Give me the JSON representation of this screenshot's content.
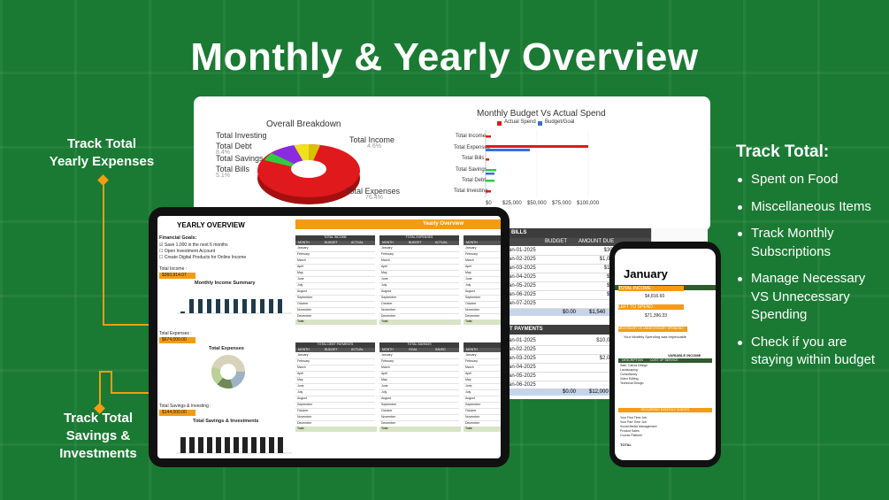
{
  "title": "Monthly & Yearly Overview",
  "labels": {
    "yearly_expenses": [
      "Track Total",
      "Yearly Expenses"
    ],
    "savings": [
      "Track Total",
      "Savings &",
      "Investments"
    ]
  },
  "right_panel": {
    "title": "Track Total:",
    "items": [
      "Spent on Food",
      "Miscellaneous Items",
      "Track Monthly Subscriptions",
      "Manage Necessary VS Unnecessary Spending",
      "Check if you are staying within budget"
    ]
  },
  "overall_breakdown": {
    "title": "Overall Breakdown",
    "labels": [
      "Total Investing",
      "Total Debt",
      "Total Savings",
      "Total Bills",
      "Total Income",
      "Total Expenses"
    ],
    "pcts": [
      "",
      "8.4%",
      "",
      "5.1%",
      "4.6%",
      "76.4%"
    ]
  },
  "budget_vs_actual": {
    "title": "Monthly Budget Vs Actual Spend",
    "legend": [
      "Actual Spend",
      "Budget/Goal"
    ],
    "categories": [
      "Total Income",
      "Total Expenses",
      "Total Bills",
      "Total Savings",
      "Total Debt",
      "Total Investing"
    ],
    "ticks": [
      "$0",
      "$25,000",
      "$50,000",
      "$75,000",
      "$100,000"
    ]
  },
  "tablet": {
    "heading": "YEARLY OVERVIEW",
    "banner": "Yearly Overview",
    "financial_goals": "Financial Goals:",
    "goals": [
      "Save 1,000 in the next 6 months",
      "Open Investment Account",
      "Create Digital Products for Online Income"
    ],
    "total_income_label": "Total Income :",
    "total_income_value": "$360,914.07",
    "income_chart_title": "Monthly Income Summary",
    "total_expenses_label": "Total Expenses :",
    "total_expenses_value": "$674,000.00",
    "expenses_chart_title": "Total Expenses",
    "savings_label": "Total Savings & Investing :",
    "savings_value": "$144,000.00",
    "savings_chart_title": "Total Savings & Investments",
    "months": [
      "January",
      "February",
      "March",
      "April",
      "May",
      "June",
      "July",
      "August",
      "September",
      "October",
      "November",
      "December"
    ],
    "income_header": "TOTAL INCOME",
    "expenses_header": "TOTAL EXPENSES",
    "debt_header": "TOTAL DEBT PAYMENTS",
    "savings_header": "TOTAL SAVINGS",
    "col_month": "MONTH",
    "col_budget": "BUDGET",
    "col_actual": "ACTUAL",
    "col_goal": "GOAL",
    "col_saved": "SAVED",
    "col_total": "Total"
  },
  "sheet": {
    "bills_header": "BILLS",
    "cols": [
      "DATE",
      "BUDGET",
      "AMOUNT DUE"
    ],
    "dates": [
      "Jan-01-2025",
      "Jan-02-2025",
      "Jan-03-2025",
      "Jan-04-2025",
      "Jan-05-2025",
      "Jan-06-2025",
      "Jan-07-2025"
    ],
    "amounts": [
      "$300",
      "$1,000",
      "$100",
      "$40",
      "$50",
      "$60",
      ""
    ],
    "total": [
      "$0.00",
      "$1,540"
    ],
    "debt_header": "T PAYMENTS",
    "debt_dates": [
      "Jan-01-2025",
      "Jan-02-2025",
      "Jan-03-2025",
      "Jan-04-2025",
      "Jan-05-2025",
      "Jan-06-2025"
    ],
    "debt_amounts": [
      "$10,000",
      "",
      "$2,000",
      "",
      "",
      ""
    ],
    "debt_total": [
      "$0.00",
      "$12,000"
    ]
  },
  "phone": {
    "month": "January",
    "total_income": "TOTAL INCOME :",
    "income_value": "$4,816.60",
    "left_to_spend": "LEFT TO SPEND :",
    "left_value": "$71,396.33",
    "necessary": "NECESSARY VS UNNECESSARY SPENDING",
    "note": "Your Monthly Spending was Impeccable",
    "variable_income": "VARIABLE INCOME",
    "cols": [
      "DESCRIPTION",
      "COST OF SERVICE"
    ],
    "rows": [
      "Sale: Canva Design",
      "Landscaping",
      "Consultancy",
      "Video Editing",
      "Technical Design"
    ],
    "recurring": "RECURRING MONTHLY CLIENTS",
    "clients": [
      "Your First Time Job",
      "Your Part Time Job",
      "Social Media Management",
      "Product Sales",
      "Course Platform"
    ],
    "total": "TOTAL"
  }
}
